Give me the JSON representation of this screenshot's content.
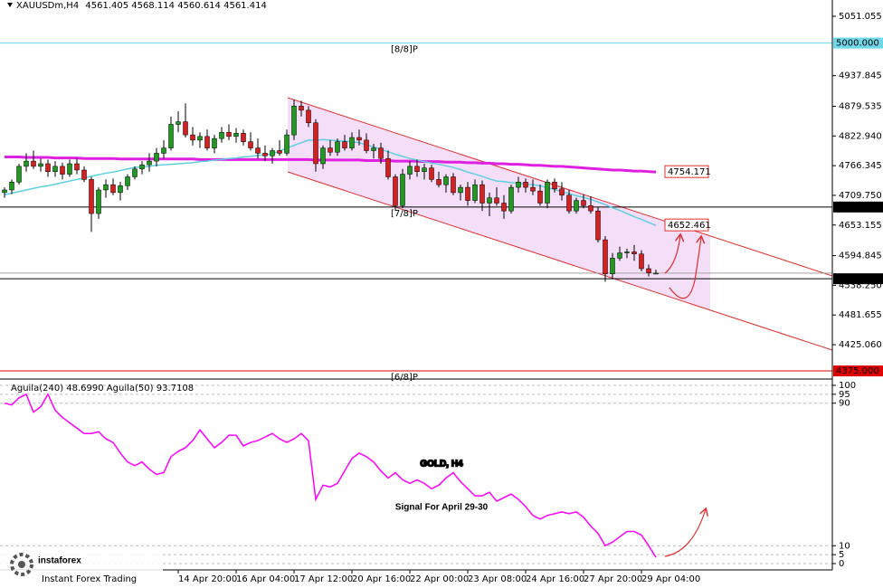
{
  "symbol": "XAUUSDm,H4",
  "overlay": {
    "title": "GOLD, H4",
    "subtitle": "Signal For April 29-30"
  },
  "logo": {
    "name": "instaforex",
    "tagline": "Instant Forex Trading"
  },
  "chart_data": [
    {
      "type": "candlestick",
      "categories": [
        null,
        null,
        null,
        null,
        null,
        null,
        null,
        null,
        null,
        null,
        null,
        null,
        null,
        null,
        null,
        null,
        null,
        null,
        null,
        null,
        null,
        null,
        null,
        null,
        "14 Apr 20:00",
        null,
        null,
        null,
        null,
        null,
        null,
        null,
        "16 Apr 04:00",
        null,
        null,
        null,
        null,
        null,
        null,
        null,
        "17 Apr 12:00",
        null,
        null,
        null,
        null,
        null,
        null,
        null,
        "20 Apr 16:00",
        null,
        null,
        null,
        null,
        null,
        null,
        null,
        "22 Apr 00:00",
        null,
        null,
        null,
        null,
        null,
        null,
        null,
        "23 Apr 08:00",
        null,
        null,
        null,
        null,
        null,
        null,
        null,
        "24 Apr 16:00",
        null,
        null,
        null,
        null,
        null,
        null,
        null,
        "27 Apr 20:00",
        null,
        null,
        null,
        null,
        null,
        null,
        null,
        "29 Apr 04:00",
        null,
        null
      ],
      "open": [
        4715,
        4720,
        4735,
        4765,
        4775,
        4765,
        4770,
        4755,
        4765,
        4750,
        4770,
        4758,
        4740,
        4675,
        4720,
        4730,
        4715,
        4728,
        4745,
        4760,
        4768,
        4775,
        4790,
        4800,
        4845,
        4850,
        4825,
        4815,
        4822,
        4800,
        4818,
        4830,
        4822,
        4828,
        4812,
        4800,
        4790,
        4785,
        4795,
        4790,
        4825,
        4880,
        4872,
        4848,
        4770,
        4800,
        4792,
        4812,
        4800,
        4820,
        4815,
        4795,
        4800,
        4780,
        4745,
        4690,
        4750,
        4765,
        4755,
        4762,
        4740,
        4730,
        4745,
        4715,
        4725,
        4700,
        4730,
        4695,
        4705,
        4695,
        4680,
        4725,
        4735,
        4725,
        4718,
        4695,
        4735,
        4722,
        4710,
        4680,
        4700,
        4690,
        4680,
        4625,
        4560,
        4590,
        4600,
        4602,
        4598,
        4570,
        4561.405
      ],
      "high": [
        4725,
        4740,
        4770,
        4790,
        4795,
        4780,
        4778,
        4775,
        4772,
        4778,
        4780,
        4765,
        4745,
        4725,
        4740,
        4742,
        4735,
        4750,
        4765,
        4775,
        4790,
        4800,
        4815,
        4860,
        4870,
        4885,
        4840,
        4830,
        4835,
        4825,
        4840,
        4845,
        4838,
        4835,
        4830,
        4818,
        4805,
        4800,
        4815,
        4835,
        4892,
        4890,
        4880,
        4855,
        4805,
        4815,
        4818,
        4825,
        4830,
        4835,
        4828,
        4808,
        4810,
        4795,
        4750,
        4760,
        4775,
        4778,
        4770,
        4768,
        4755,
        4750,
        4752,
        4730,
        4735,
        4740,
        4738,
        4715,
        4725,
        4710,
        4730,
        4745,
        4742,
        4740,
        4730,
        4740,
        4742,
        4735,
        4720,
        4705,
        4712,
        4708,
        4688,
        4632,
        4600,
        4612,
        4608,
        4615,
        4605,
        4578,
        4568.114
      ],
      "low": [
        4705,
        4712,
        4730,
        4755,
        4760,
        4755,
        4745,
        4745,
        4740,
        4745,
        4750,
        4735,
        4640,
        4665,
        4705,
        4710,
        4700,
        4720,
        4740,
        4750,
        4755,
        4765,
        4780,
        4795,
        4830,
        4820,
        4805,
        4800,
        4795,
        4790,
        4810,
        4815,
        4810,
        4805,
        4795,
        4780,
        4775,
        4770,
        4785,
        4785,
        4815,
        4860,
        4840,
        4755,
        4760,
        4785,
        4785,
        4795,
        4795,
        4805,
        4790,
        4780,
        4770,
        4740,
        4680,
        4685,
        4740,
        4745,
        4740,
        4735,
        4725,
        4715,
        4710,
        4700,
        4690,
        4695,
        4680,
        4670,
        4690,
        4665,
        4675,
        4715,
        4715,
        4710,
        4690,
        4685,
        4715,
        4700,
        4675,
        4675,
        4685,
        4675,
        4620,
        4545,
        4550,
        4585,
        4590,
        4585,
        4565,
        4555,
        4560.614
      ],
      "close": [
        4720,
        4735,
        4765,
        4775,
        4765,
        4770,
        4755,
        4765,
        4750,
        4770,
        4758,
        4740,
        4675,
        4720,
        4730,
        4715,
        4728,
        4745,
        4760,
        4768,
        4775,
        4790,
        4800,
        4845,
        4850,
        4825,
        4815,
        4822,
        4800,
        4818,
        4830,
        4822,
        4828,
        4812,
        4800,
        4790,
        4785,
        4795,
        4790,
        4825,
        4880,
        4872,
        4848,
        4770,
        4800,
        4792,
        4812,
        4800,
        4820,
        4815,
        4795,
        4800,
        4780,
        4745,
        4690,
        4750,
        4765,
        4755,
        4762,
        4740,
        4730,
        4745,
        4715,
        4725,
        4700,
        4730,
        4695,
        4705,
        4695,
        4680,
        4725,
        4735,
        4725,
        4718,
        4695,
        4735,
        4722,
        4710,
        4680,
        4700,
        4690,
        4680,
        4625,
        4560,
        4590,
        4600,
        4602,
        4598,
        4570,
        4562,
        4561.414
      ],
      "up_color": "#1e9a1e",
      "down_color": "#d81f1f",
      "series": [
        {
          "color": "#e020e0",
          "values": [
            4783,
            4783,
            4783,
            4782,
            4782,
            4782,
            4782,
            4781,
            4781,
            4781,
            4781,
            4780,
            4780,
            4780,
            4780,
            4780,
            4779,
            4779,
            4779,
            4779,
            4779,
            4779,
            4779,
            4779,
            4779,
            4779,
            4779,
            4778,
            4778,
            4778,
            4778,
            4778,
            4778,
            4778,
            4778,
            4778,
            4778,
            4778,
            4778,
            4778,
            4778,
            4778,
            4778,
            4777,
            4777,
            4777,
            4777,
            4777,
            4777,
            4777,
            4776,
            4776,
            4776,
            4776,
            4775,
            4775,
            4775,
            4775,
            4774,
            4774,
            4774,
            4773,
            4773,
            4773,
            4772,
            4772,
            4771,
            4771,
            4770,
            4770,
            4769,
            4769,
            4768,
            4767,
            4767,
            4766,
            4765,
            4765,
            4764,
            4763,
            4762,
            4761,
            4760,
            4759,
            4758,
            4758,
            4757,
            4756,
            4756,
            4755,
            4754.171
          ]
        },
        {
          "color": "#5fd0e0",
          "values": [
            4711,
            4714,
            4717,
            4720,
            4723,
            4726,
            4728,
            4731,
            4734,
            4737,
            4740,
            4743,
            4746,
            4749,
            4752,
            4754,
            4757,
            4760,
            4763,
            4764,
            4765,
            4767,
            4768,
            4769,
            4770,
            4771,
            4772,
            4774,
            4775,
            4777,
            4778,
            4780,
            4781,
            4783,
            4784,
            4786,
            4787,
            4789,
            4794,
            4800,
            4805,
            4810,
            4815,
            4815,
            4816,
            4815,
            4814,
            4813,
            4812,
            4810,
            4806,
            4802,
            4797,
            4793,
            4788,
            4784,
            4780,
            4777,
            4774,
            4771,
            4769,
            4766,
            4763,
            4759,
            4754,
            4750,
            4746,
            4741,
            4737,
            4736,
            4734,
            4733,
            4731,
            4730,
            4728,
            4724,
            4721,
            4717,
            4713,
            4709,
            4706,
            4702,
            4697,
            4692,
            4686,
            4681,
            4675,
            4669,
            4664,
            4658,
            4652.461
          ]
        }
      ],
      "levels": [
        {
          "value": 5000,
          "label": "5000.000",
          "name": "[8/8]P",
          "color": "#6fd8e8"
        },
        {
          "value": 4687.5,
          "label": "4687.500",
          "name": "[7/8]P",
          "color": "#000000"
        },
        {
          "value": 4375,
          "label": "4375.000",
          "name": "[6/8]P",
          "color": "#e00000"
        },
        {
          "value": 4550.751,
          "color": "#000000"
        }
      ],
      "ylim": [
        4361.3,
        5082.1
      ],
      "yticks": [
        5051.055,
        4937.845,
        4879.535,
        {
          "value": 4822.94,
          "label": "4822.940"
        },
        4766.345,
        {
          "value": 4709.75,
          "label": "4709.750"
        },
        4653.155,
        4594.845,
        {
          "value": 4538.25,
          "label": "4538.250"
        },
        4481.655,
        {
          "value": 4425.06,
          "label": "4425.060"
        }
      ]
    },
    {
      "type": "line",
      "title": "Aguila(240) 48.6990  Aguila(50) 93.7108",
      "series": [
        {
          "color": "#ff00ff",
          "values": [
            90,
            89,
            93,
            95,
            85,
            88,
            95,
            86,
            82,
            79,
            76,
            73,
            73,
            74,
            70,
            68,
            62,
            57,
            55,
            57,
            53,
            50,
            51,
            60,
            63,
            65,
            69,
            75,
            70,
            65,
            68,
            72,
            72,
            66,
            68,
            69,
            71,
            73,
            70,
            68,
            70,
            73,
            69,
            36,
            44,
            43,
            45,
            52,
            59,
            62,
            60,
            57,
            52,
            48,
            51,
            47,
            45,
            47,
            45,
            42,
            44,
            48,
            51,
            46,
            42,
            38,
            38,
            40,
            35,
            37,
            39,
            36,
            32,
            27,
            25,
            27,
            28,
            29,
            28,
            29,
            26,
            21,
            17,
            10,
            12,
            15,
            18,
            18,
            16,
            10,
            3.5
          ]
        }
      ],
      "ylim": [
        0,
        100
      ],
      "yticks": [
        0,
        5,
        10,
        90,
        95,
        100
      ]
    }
  ]
}
